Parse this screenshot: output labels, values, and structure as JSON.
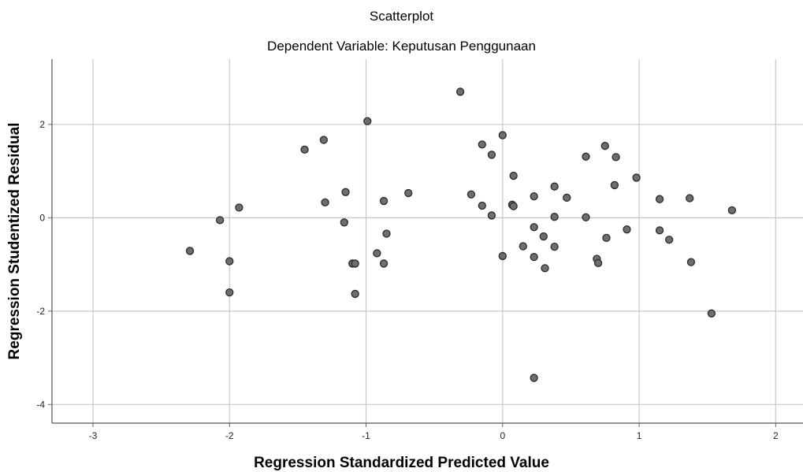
{
  "chart_data": {
    "type": "scatter",
    "title": "Scatterplot",
    "subtitle": "Dependent Variable: Keputusan Penggunaan",
    "xlabel": "Regression Standardized Predicted Value",
    "ylabel": "Regression Studentized Residual",
    "xlim": [
      -3.3,
      2.2
    ],
    "ylim": [
      -4.4,
      3.4
    ],
    "xticks": [
      "-3",
      "-2",
      "-1",
      "0",
      "1",
      "2"
    ],
    "yticks": [
      "2",
      "0",
      "-2",
      "-4"
    ],
    "grid": true,
    "point_color": "#6e6e6e",
    "points": [
      {
        "x": -2.29,
        "y": -0.71
      },
      {
        "x": -2.07,
        "y": -0.05
      },
      {
        "x": -2.0,
        "y": -0.93
      },
      {
        "x": -2.0,
        "y": -1.6
      },
      {
        "x": -1.93,
        "y": 0.22
      },
      {
        "x": -1.45,
        "y": 1.46
      },
      {
        "x": -1.31,
        "y": 1.67
      },
      {
        "x": -1.3,
        "y": 0.33
      },
      {
        "x": -1.15,
        "y": 0.55
      },
      {
        "x": -1.16,
        "y": -0.1
      },
      {
        "x": -1.1,
        "y": -0.98
      },
      {
        "x": -1.08,
        "y": -0.98
      },
      {
        "x": -1.08,
        "y": -1.63
      },
      {
        "x": -0.99,
        "y": 2.07
      },
      {
        "x": -0.92,
        "y": -0.76
      },
      {
        "x": -0.87,
        "y": 0.36
      },
      {
        "x": -0.85,
        "y": -0.34
      },
      {
        "x": -0.87,
        "y": -0.98
      },
      {
        "x": -0.69,
        "y": 0.53
      },
      {
        "x": -0.31,
        "y": 2.7
      },
      {
        "x": -0.23,
        "y": 0.5
      },
      {
        "x": -0.15,
        "y": 1.57
      },
      {
        "x": -0.15,
        "y": 0.26
      },
      {
        "x": -0.08,
        "y": 1.35
      },
      {
        "x": -0.08,
        "y": 0.05
      },
      {
        "x": 0.0,
        "y": 1.77
      },
      {
        "x": 0.0,
        "y": -0.82
      },
      {
        "x": 0.07,
        "y": 0.28
      },
      {
        "x": 0.08,
        "y": 0.25
      },
      {
        "x": 0.08,
        "y": 0.9
      },
      {
        "x": 0.15,
        "y": -0.61
      },
      {
        "x": 0.23,
        "y": 0.46
      },
      {
        "x": 0.23,
        "y": -0.2
      },
      {
        "x": 0.23,
        "y": -0.84
      },
      {
        "x": 0.23,
        "y": -3.43
      },
      {
        "x": 0.3,
        "y": -0.4
      },
      {
        "x": 0.31,
        "y": -1.08
      },
      {
        "x": 0.38,
        "y": 0.67
      },
      {
        "x": 0.38,
        "y": 0.02
      },
      {
        "x": 0.38,
        "y": -0.62
      },
      {
        "x": 0.47,
        "y": 0.43
      },
      {
        "x": 0.61,
        "y": 1.31
      },
      {
        "x": 0.61,
        "y": 0.01
      },
      {
        "x": 0.69,
        "y": -0.88
      },
      {
        "x": 0.7,
        "y": -0.97
      },
      {
        "x": 0.75,
        "y": 1.54
      },
      {
        "x": 0.76,
        "y": -0.43
      },
      {
        "x": 0.82,
        "y": 0.7
      },
      {
        "x": 0.83,
        "y": 1.3
      },
      {
        "x": 0.91,
        "y": -0.25
      },
      {
        "x": 0.98,
        "y": 0.86
      },
      {
        "x": 1.15,
        "y": 0.4
      },
      {
        "x": 1.15,
        "y": -0.27
      },
      {
        "x": 1.22,
        "y": -0.47
      },
      {
        "x": 1.37,
        "y": 0.42
      },
      {
        "x": 1.38,
        "y": -0.95
      },
      {
        "x": 1.53,
        "y": -2.05
      },
      {
        "x": 1.68,
        "y": 0.16
      }
    ]
  }
}
